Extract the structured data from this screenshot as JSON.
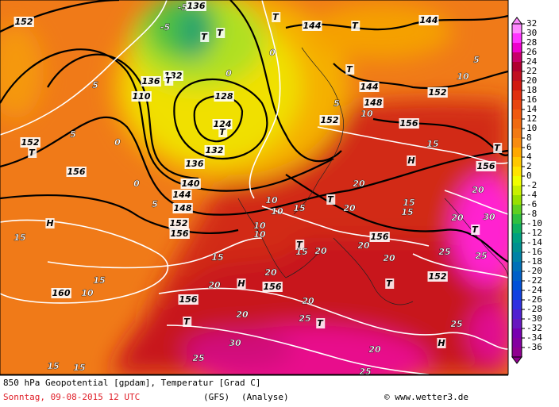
{
  "map": {
    "caption": {
      "line1": "850 hPa Geopotential [gpdam], Temperatur [Grad C]",
      "date": "Sonntag, 09-08-2015  12 UTC",
      "model": "(GFS)",
      "run": "(Analyse)",
      "credit": "© www.wetter3.de"
    },
    "colorbar": {
      "labels": [
        32,
        30,
        28,
        26,
        24,
        22,
        20,
        18,
        16,
        14,
        12,
        10,
        8,
        6,
        4,
        2,
        0,
        -2,
        -4,
        -6,
        -8,
        -10,
        -12,
        -14,
        -16,
        -18,
        -20,
        -22,
        -24,
        -26,
        -28,
        -30,
        -32,
        -34,
        -36
      ],
      "colors": [
        "#ff88ff",
        "#ff33ff",
        "#ee00cc",
        "#c8006a",
        "#b00030",
        "#c01020",
        "#d01a10",
        "#e03010",
        "#e84510",
        "#f05a10",
        "#f06a10",
        "#f27a14",
        "#f88c10",
        "#ffa800",
        "#ffc800",
        "#ffe400",
        "#f0ff00",
        "#c8f000",
        "#98e000",
        "#60d020",
        "#30c040",
        "#10b060",
        "#00a080",
        "#009090",
        "#0082a6",
        "#0070b8",
        "#0060c8",
        "#0050d8",
        "#1040e0",
        "#3030e0",
        "#5020d0",
        "#6818c0",
        "#7800b0",
        "#8400a0",
        "#900090"
      ]
    },
    "labels": [
      "152",
      "-5",
      "136",
      "-5",
      "T",
      "T",
      "T",
      "144",
      "T",
      "144",
      "0",
      "0",
      "136",
      "132",
      "T",
      "110",
      "5",
      "0",
      "T",
      "5",
      "152",
      "128",
      "124",
      "T",
      "132",
      "136",
      "140",
      "144",
      "148",
      "152",
      "156",
      "0",
      "5",
      "156",
      "H",
      "15",
      "15",
      "10",
      "160",
      "15",
      "15",
      "156",
      "T",
      "20",
      "H",
      "20",
      "156",
      "20",
      "20",
      "25",
      "T",
      "30",
      "25",
      "25",
      "20",
      "25",
      "H",
      "152",
      "T",
      "20",
      "T",
      "15",
      "20",
      "T",
      "20",
      "15",
      "15",
      "H",
      "15",
      "156",
      "152",
      "10",
      "148",
      "144",
      "T",
      "20",
      "20",
      "30",
      "T",
      "25",
      "25",
      "T",
      "156",
      "10",
      "152",
      "5",
      "5",
      "10",
      "10",
      "15",
      "10",
      "10",
      "15",
      "156",
      "20",
      "20"
    ]
  }
}
